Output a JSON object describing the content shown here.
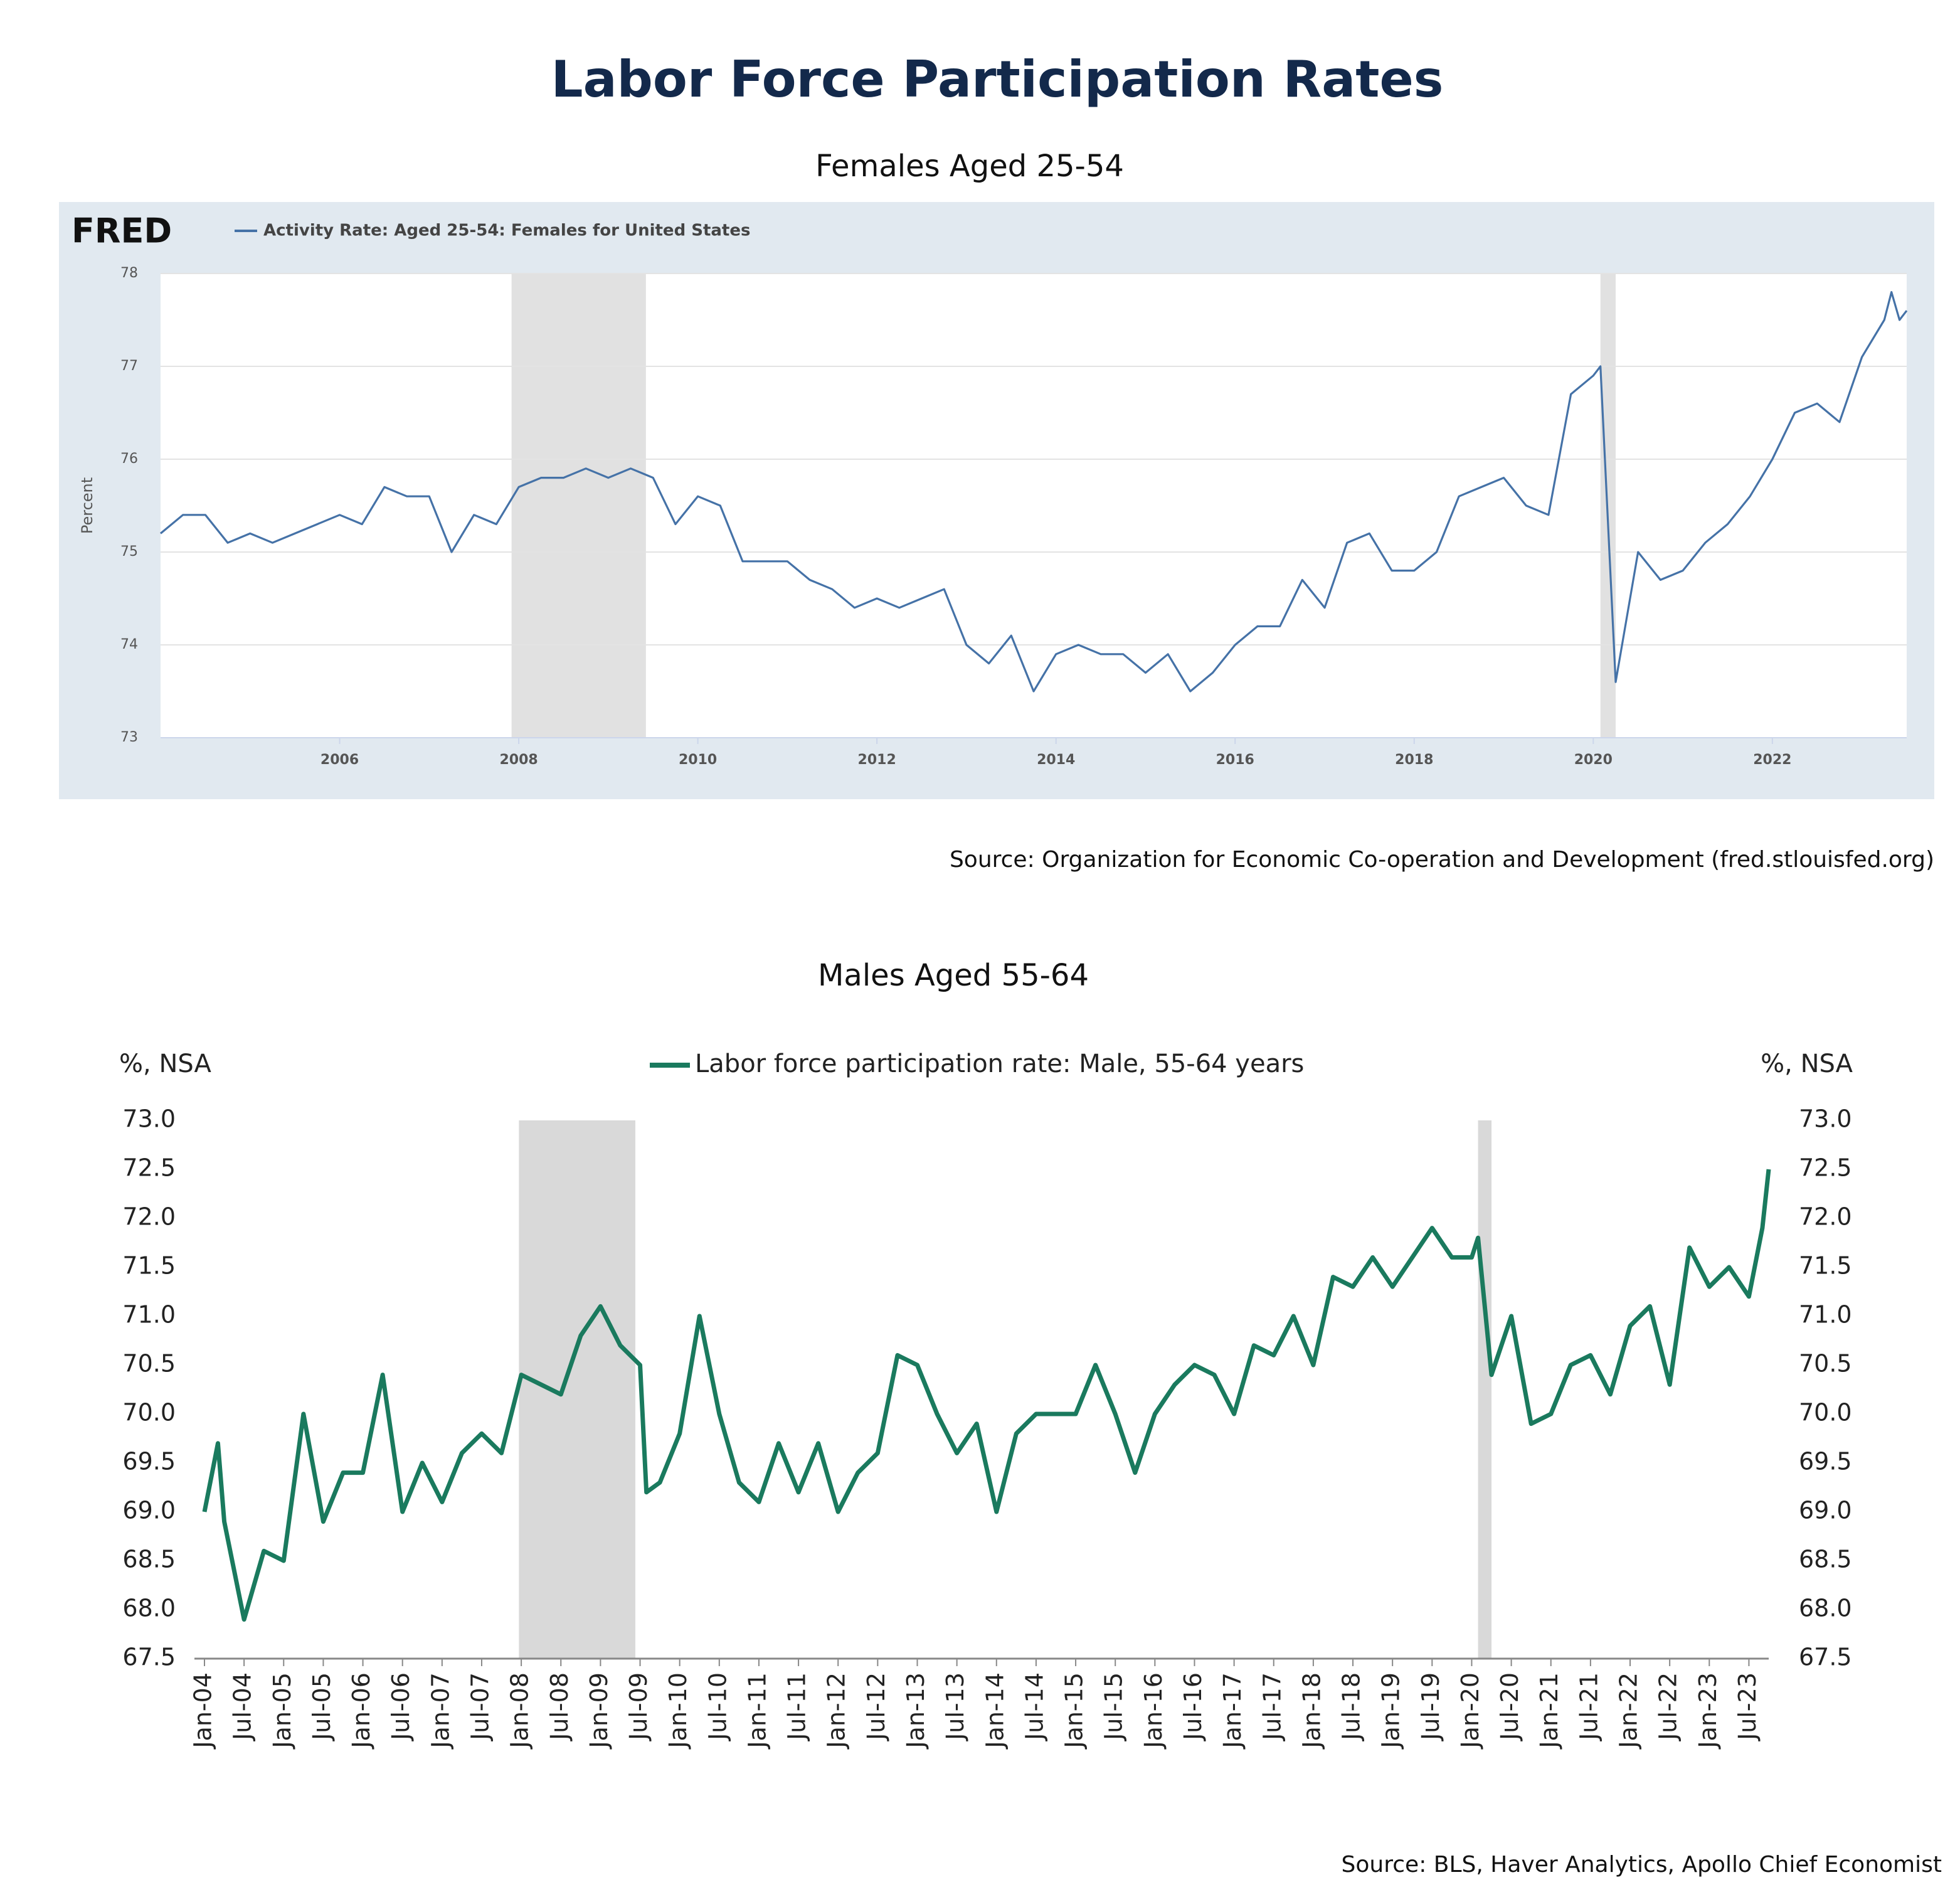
{
  "title": "Labor Force Participation Rates",
  "chart_data": [
    {
      "type": "line",
      "title": "Females Aged 25-54",
      "logo": "FRED",
      "ylabel": "Percent",
      "source": "Source: Organization for Economic Co-operation and Development (fred.stlouisfed.org)",
      "xlim": [
        2004,
        2023.5
      ],
      "xticks": [
        2006,
        2008,
        2010,
        2012,
        2014,
        2016,
        2018,
        2020,
        2022
      ],
      "ylim": [
        73,
        78
      ],
      "yticks": [
        73,
        74,
        75,
        76,
        77,
        78
      ],
      "grid": true,
      "shaded_ranges": [
        [
          2007.92,
          2009.42
        ],
        [
          2020.08,
          2020.25
        ]
      ],
      "shade_color": "#e1e1e1",
      "x": [
        2004,
        2004.25,
        2004.5,
        2004.75,
        2005,
        2005.25,
        2005.5,
        2005.75,
        2006,
        2006.25,
        2006.5,
        2006.75,
        2007,
        2007.25,
        2007.5,
        2007.75,
        2008,
        2008.25,
        2008.5,
        2008.75,
        2009,
        2009.25,
        2009.5,
        2009.75,
        2010,
        2010.25,
        2010.5,
        2010.75,
        2011,
        2011.25,
        2011.5,
        2011.75,
        2012,
        2012.25,
        2012.5,
        2012.75,
        2013,
        2013.25,
        2013.5,
        2013.75,
        2014,
        2014.25,
        2014.5,
        2014.75,
        2015,
        2015.25,
        2015.5,
        2015.75,
        2016,
        2016.25,
        2016.5,
        2016.75,
        2017,
        2017.25,
        2017.5,
        2017.75,
        2018,
        2018.25,
        2018.5,
        2018.75,
        2019,
        2019.25,
        2019.5,
        2019.75,
        2020,
        2020.08,
        2020.25,
        2020.5,
        2020.75,
        2021,
        2021.25,
        2021.5,
        2021.75,
        2022,
        2022.25,
        2022.5,
        2022.75,
        2023,
        2023.25,
        2023.33,
        2023.42,
        2023.5
      ],
      "series": [
        {
          "name": "Activity Rate: Aged 25-54: Females for United States",
          "color": "#4572a7",
          "values": [
            75.2,
            75.4,
            75.4,
            75.1,
            75.2,
            75.1,
            75.2,
            75.3,
            75.4,
            75.3,
            75.7,
            75.6,
            75.6,
            75.0,
            75.4,
            75.3,
            75.7,
            75.8,
            75.8,
            75.9,
            75.8,
            75.9,
            75.8,
            75.3,
            75.6,
            75.5,
            74.9,
            74.9,
            74.9,
            74.7,
            74.6,
            74.4,
            74.5,
            74.4,
            74.5,
            74.6,
            74.0,
            73.8,
            74.1,
            73.5,
            73.9,
            74.0,
            73.9,
            73.9,
            73.7,
            73.9,
            73.5,
            73.7,
            74.0,
            74.2,
            74.2,
            74.7,
            74.4,
            75.1,
            75.2,
            74.8,
            74.8,
            75.0,
            75.6,
            75.7,
            75.8,
            75.5,
            75.4,
            76.7,
            76.9,
            77.0,
            73.6,
            75.0,
            74.7,
            74.8,
            75.1,
            75.3,
            75.6,
            76.0,
            76.5,
            76.6,
            76.4,
            77.1,
            77.5,
            77.8,
            77.5,
            77.6
          ]
        }
      ]
    },
    {
      "type": "line",
      "title": "Males Aged 55-64",
      "ylabel": "%, NSA",
      "y2label": "%, NSA",
      "source": "Source: BLS, Haver Analytics, Apollo Chief Economist",
      "xlim": [
        2004,
        2023.75
      ],
      "xticks": [
        {
          "value": 2004,
          "label": "Jan-04"
        },
        {
          "value": 2004.5,
          "label": "Jul-04"
        },
        {
          "value": 2005,
          "label": "Jan-05"
        },
        {
          "value": 2005.5,
          "label": "Jul-05"
        },
        {
          "value": 2006,
          "label": "Jan-06"
        },
        {
          "value": 2006.5,
          "label": "Jul-06"
        },
        {
          "value": 2007,
          "label": "Jan-07"
        },
        {
          "value": 2007.5,
          "label": "Jul-07"
        },
        {
          "value": 2008,
          "label": "Jan-08"
        },
        {
          "value": 2008.5,
          "label": "Jul-08"
        },
        {
          "value": 2009,
          "label": "Jan-09"
        },
        {
          "value": 2009.5,
          "label": "Jul-09"
        },
        {
          "value": 2010,
          "label": "Jan-10"
        },
        {
          "value": 2010.5,
          "label": "Jul-10"
        },
        {
          "value": 2011,
          "label": "Jan-11"
        },
        {
          "value": 2011.5,
          "label": "Jul-11"
        },
        {
          "value": 2012,
          "label": "Jan-12"
        },
        {
          "value": 2012.5,
          "label": "Jul-12"
        },
        {
          "value": 2013,
          "label": "Jan-13"
        },
        {
          "value": 2013.5,
          "label": "Jul-13"
        },
        {
          "value": 2014,
          "label": "Jan-14"
        },
        {
          "value": 2014.5,
          "label": "Jul-14"
        },
        {
          "value": 2015,
          "label": "Jan-15"
        },
        {
          "value": 2015.5,
          "label": "Jul-15"
        },
        {
          "value": 2016,
          "label": "Jan-16"
        },
        {
          "value": 2016.5,
          "label": "Jul-16"
        },
        {
          "value": 2017,
          "label": "Jan-17"
        },
        {
          "value": 2017.5,
          "label": "Jul-17"
        },
        {
          "value": 2018,
          "label": "Jan-18"
        },
        {
          "value": 2018.5,
          "label": "Jul-18"
        },
        {
          "value": 2019,
          "label": "Jan-19"
        },
        {
          "value": 2019.5,
          "label": "Jul-19"
        },
        {
          "value": 2020,
          "label": "Jan-20"
        },
        {
          "value": 2020.5,
          "label": "Jul-20"
        },
        {
          "value": 2021,
          "label": "Jan-21"
        },
        {
          "value": 2021.5,
          "label": "Jul-21"
        },
        {
          "value": 2022,
          "label": "Jan-22"
        },
        {
          "value": 2022.5,
          "label": "Jul-22"
        },
        {
          "value": 2023,
          "label": "Jan-23"
        },
        {
          "value": 2023.5,
          "label": "Jul-23"
        }
      ],
      "ylim": [
        67.5,
        73
      ],
      "yticks": [
        67.5,
        {
          "value": 68,
          "label": "68.0"
        },
        68.5,
        {
          "value": 69,
          "label": "69.0"
        },
        69.5,
        {
          "value": 70,
          "label": "70.0"
        },
        70.5,
        {
          "value": 71,
          "label": "71.0"
        },
        71.5,
        {
          "value": 72,
          "label": "72.0"
        },
        72.5,
        {
          "value": 73,
          "label": "73.0"
        }
      ],
      "y2lim": [
        67.5,
        73
      ],
      "y2ticks": [
        67.5,
        {
          "value": 68,
          "label": "68.0"
        },
        68.5,
        {
          "value": 69,
          "label": "69.0"
        },
        69.5,
        {
          "value": 70,
          "label": "70.0"
        },
        70.5,
        {
          "value": 71,
          "label": "71.0"
        },
        71.5,
        {
          "value": 72,
          "label": "72.0"
        },
        72.5,
        {
          "value": 73,
          "label": "73.0"
        }
      ],
      "grid": false,
      "shaded_ranges": [
        [
          2007.97,
          2009.44
        ],
        [
          2020.08,
          2020.25
        ]
      ],
      "shade_color": "#d9d9d9",
      "x": [
        2004,
        2004.17,
        2004.25,
        2004.5,
        2004.75,
        2005,
        2005.25,
        2005.5,
        2005.75,
        2006,
        2006.25,
        2006.5,
        2006.75,
        2007,
        2007.25,
        2007.5,
        2007.75,
        2008,
        2008.25,
        2008.5,
        2008.75,
        2009,
        2009.25,
        2009.5,
        2009.58,
        2009.75,
        2010,
        2010.25,
        2010.5,
        2010.75,
        2011,
        2011.25,
        2011.5,
        2011.75,
        2012,
        2012.25,
        2012.5,
        2012.75,
        2013,
        2013.25,
        2013.5,
        2013.75,
        2014,
        2014.25,
        2014.5,
        2014.75,
        2015,
        2015.25,
        2015.5,
        2015.75,
        2016,
        2016.25,
        2016.5,
        2016.75,
        2017,
        2017.25,
        2017.5,
        2017.75,
        2018,
        2018.25,
        2018.5,
        2018.75,
        2019,
        2019.25,
        2019.5,
        2019.75,
        2020,
        2020.08,
        2020.25,
        2020.5,
        2020.75,
        2021,
        2021.25,
        2021.5,
        2021.75,
        2022,
        2022.25,
        2022.5,
        2022.75,
        2023,
        2023.25,
        2023.5,
        2023.67,
        2023.75
      ],
      "series": [
        {
          "name": "Labor force participation rate: Male, 55-64 years",
          "color": "#1a7a5e",
          "values": [
            69.0,
            69.7,
            68.9,
            67.9,
            68.6,
            68.5,
            70.0,
            68.9,
            69.4,
            69.4,
            70.4,
            69.0,
            69.5,
            69.1,
            69.6,
            69.8,
            69.6,
            70.4,
            70.3,
            70.2,
            70.8,
            71.1,
            70.7,
            70.5,
            69.2,
            69.3,
            69.8,
            71.0,
            70.0,
            69.3,
            69.1,
            69.7,
            69.2,
            69.7,
            69.0,
            69.4,
            69.6,
            70.6,
            70.5,
            70.0,
            69.6,
            69.9,
            69.0,
            69.8,
            70.0,
            70.0,
            70.0,
            70.5,
            70.0,
            69.4,
            70.0,
            70.3,
            70.5,
            70.4,
            70.0,
            70.7,
            70.6,
            71.0,
            70.5,
            71.4,
            71.3,
            71.6,
            71.3,
            71.6,
            71.9,
            71.6,
            71.6,
            71.8,
            70.4,
            71.0,
            69.9,
            70.0,
            70.5,
            70.6,
            70.2,
            70.9,
            71.1,
            70.3,
            71.7,
            71.3,
            71.5,
            71.2,
            71.9,
            72.5
          ]
        }
      ]
    }
  ]
}
